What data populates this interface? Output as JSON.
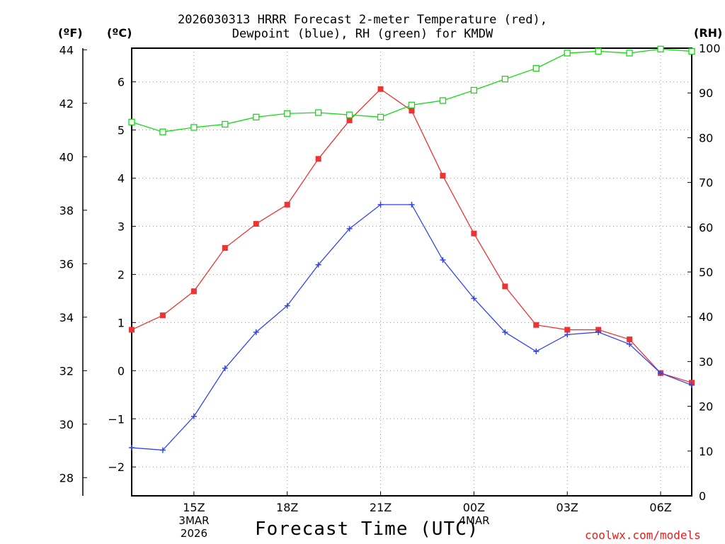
{
  "title_line1": "2026030313 HRRR Forecast 2-meter Temperature (red),",
  "title_line2": "Dewpoint (blue), RH (green) for KMDW",
  "unit_f": "(ºF)",
  "unit_c": "(ºC)",
  "unit_rh": "(RH)",
  "xlabel": "Forecast Time (UTC)",
  "credit": "coolwx.com/models",
  "date1": {
    "day": "3MAR",
    "year": "2026"
  },
  "date2": {
    "day": "4MAR"
  },
  "chart_data": {
    "type": "line",
    "x": [
      13,
      14,
      15,
      16,
      17,
      18,
      19,
      20,
      21,
      22,
      23,
      24,
      25,
      26,
      27,
      28,
      29,
      30,
      31
    ],
    "xticks": [
      {
        "x": 15,
        "label": "15Z"
      },
      {
        "x": 18,
        "label": "18Z"
      },
      {
        "x": 21,
        "label": "21Z"
      },
      {
        "x": 24,
        "label": "00Z"
      },
      {
        "x": 27,
        "label": "03Z"
      },
      {
        "x": 30,
        "label": "06Z"
      }
    ],
    "xlim": [
      13,
      31
    ],
    "ylim_c": [
      -2.6,
      6.7
    ],
    "yticks_c": [
      -2,
      -1,
      0,
      1,
      2,
      3,
      4,
      5,
      6
    ],
    "yticks_f": [
      28,
      30,
      32,
      34,
      36,
      38,
      40,
      42,
      44
    ],
    "ylim_rh": [
      0,
      100
    ],
    "yticks_rh": [
      0,
      10,
      20,
      30,
      40,
      50,
      60,
      70,
      80,
      90,
      100
    ],
    "grid": true,
    "series": [
      {
        "name": "Temperature",
        "axis": "C",
        "color": "#ee3333",
        "marker": "filled-square",
        "values": [
          0.85,
          1.15,
          1.65,
          2.55,
          3.05,
          3.45,
          4.4,
          5.2,
          5.85,
          5.4,
          4.05,
          2.85,
          1.75,
          0.95,
          0.85,
          0.85,
          0.65,
          -0.05,
          -0.25
        ]
      },
      {
        "name": "Dewpoint",
        "axis": "C",
        "color": "#3344ee",
        "marker": "plus",
        "values": [
          -1.6,
          -1.65,
          -0.95,
          0.05,
          0.8,
          1.35,
          2.2,
          2.95,
          3.45,
          3.45,
          2.3,
          1.5,
          0.8,
          0.4,
          0.75,
          0.8,
          0.55,
          -0.05,
          -0.3
        ]
      },
      {
        "name": "RH",
        "axis": "RH",
        "color": "#11dd11",
        "marker": "open-square",
        "values": [
          83.5,
          81.3,
          82.3,
          83.0,
          84.6,
          85.4,
          85.6,
          85.1,
          84.6,
          87.3,
          88.3,
          90.6,
          93.1,
          95.5,
          98.9,
          99.3,
          98.9,
          99.8,
          99.3
        ]
      }
    ]
  }
}
